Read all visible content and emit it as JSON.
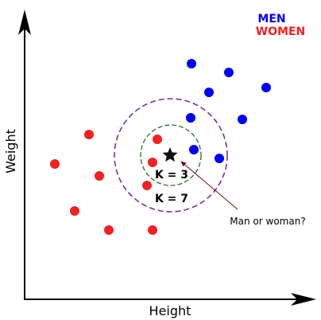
{
  "axes": {
    "x_label": "Height",
    "y_label": "Weight"
  },
  "legend": {
    "items": [
      {
        "label": "MEN",
        "color": "#0000ee"
      },
      {
        "label": "WOMEN",
        "color": "#ee2222"
      }
    ]
  },
  "colors": {
    "men": "#0000ee",
    "women": "#ee2222",
    "query": "#111111",
    "k3_circle": "#2e6b2e",
    "k7_circle": "#7a2e9c",
    "annotation_arrow": "#6b0d0d"
  },
  "circles": {
    "k3_label": "K = 3",
    "k7_label": "K = 7"
  },
  "query_point": {
    "icon": "star-icon",
    "annotation": "Man or woman?"
  }
}
